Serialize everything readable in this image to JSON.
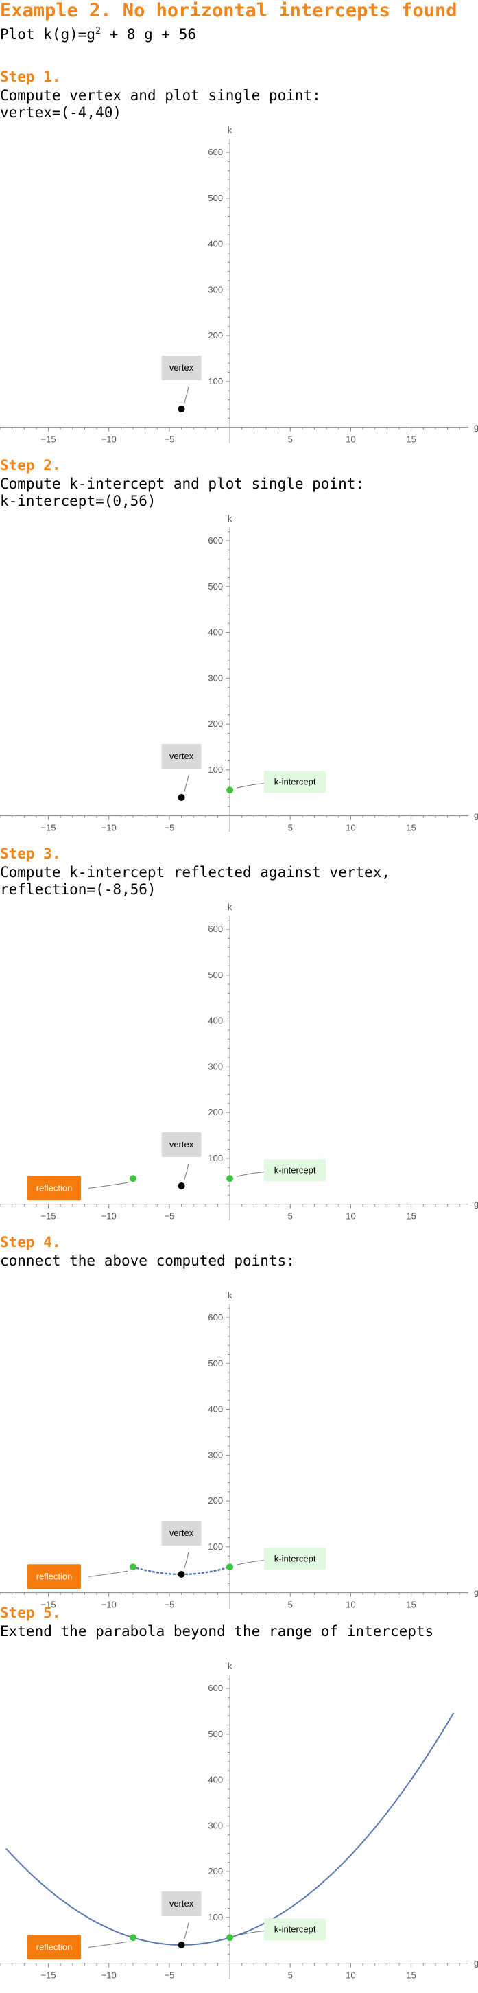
{
  "title": "Example 2. No horizontal intercepts found",
  "function_line": {
    "prefix": "Plot k(g)=g",
    "exp": "2",
    "suffix": " + 8 g + 56"
  },
  "colors": {
    "heading": "#f28418",
    "curve": "#5a79b4",
    "green_point": "#3ec43e",
    "vertex_point": "#000000",
    "vertex_label_bg": "#d9d9d9",
    "k_label_bg": "#e1f8e1",
    "reflection_label_bg": "#f57c0c"
  },
  "steps": [
    {
      "heading": "Step 1.",
      "text": [
        "Compute vertex and plot single point:",
        "vertex=(-4,40)"
      ]
    },
    {
      "heading": "Step 2.",
      "text": [
        "Compute k-intercept and plot single point:",
        "k-intercept=(0,56)"
      ]
    },
    {
      "heading": "Step 3.",
      "text": [
        "Compute k-intercept reflected against vertex,",
        "reflection=(-8,56)"
      ]
    },
    {
      "heading": "Step 4.",
      "text": [
        "connect the above computed points:"
      ]
    },
    {
      "heading": "Step 5.",
      "text": [
        "Extend the parabola beyond the range of intercepts"
      ]
    }
  ],
  "chart_data": [
    {
      "type": "scatter",
      "xlabel": "g",
      "ylabel": "k",
      "xlim": [
        -19,
        19.5
      ],
      "ylim": [
        -20,
        630
      ],
      "x_ticks": [
        -15,
        -10,
        -5,
        5,
        10,
        15
      ],
      "y_ticks": [
        100,
        200,
        300,
        400,
        500,
        600
      ],
      "points": [
        {
          "name": "vertex",
          "x": -4,
          "y": 40,
          "label": "vertex"
        }
      ],
      "connector": null,
      "curve": null
    },
    {
      "type": "scatter",
      "xlabel": "g",
      "ylabel": "k",
      "xlim": [
        -19,
        19.5
      ],
      "ylim": [
        -20,
        630
      ],
      "x_ticks": [
        -15,
        -10,
        -5,
        5,
        10,
        15
      ],
      "y_ticks": [
        100,
        200,
        300,
        400,
        500,
        600
      ],
      "points": [
        {
          "name": "vertex",
          "x": -4,
          "y": 40,
          "label": "vertex"
        },
        {
          "name": "k-intercept",
          "x": 0,
          "y": 56,
          "label": "k-intercept"
        }
      ],
      "connector": null,
      "curve": null
    },
    {
      "type": "scatter",
      "xlabel": "g",
      "ylabel": "k",
      "xlim": [
        -19,
        19.5
      ],
      "ylim": [
        -20,
        630
      ],
      "x_ticks": [
        -15,
        -10,
        -5,
        5,
        10,
        15
      ],
      "y_ticks": [
        100,
        200,
        300,
        400,
        500,
        600
      ],
      "points": [
        {
          "name": "vertex",
          "x": -4,
          "y": 40,
          "label": "vertex"
        },
        {
          "name": "k-intercept",
          "x": 0,
          "y": 56,
          "label": "k-intercept"
        },
        {
          "name": "reflection",
          "x": -8,
          "y": 56,
          "label": "reflection"
        }
      ],
      "connector": null,
      "curve": null
    },
    {
      "type": "line",
      "xlabel": "g",
      "ylabel": "k",
      "xlim": [
        -19,
        19.5
      ],
      "ylim": [
        -20,
        630
      ],
      "x_ticks": [
        -15,
        -10,
        -5,
        5,
        10,
        15
      ],
      "y_ticks": [
        100,
        200,
        300,
        400,
        500,
        600
      ],
      "points": [
        {
          "name": "vertex",
          "x": -4,
          "y": 40,
          "label": "vertex"
        },
        {
          "name": "k-intercept",
          "x": 0,
          "y": 56,
          "label": "k-intercept"
        },
        {
          "name": "reflection",
          "x": -8,
          "y": 56,
          "label": "reflection"
        }
      ],
      "connector": {
        "style": "dotted",
        "from": -8,
        "to": 0
      },
      "curve": null
    },
    {
      "type": "line",
      "xlabel": "g",
      "ylabel": "k",
      "xlim": [
        -19,
        19.5
      ],
      "ylim": [
        -20,
        630
      ],
      "x_ticks": [
        -15,
        -10,
        -5,
        5,
        10,
        15
      ],
      "y_ticks": [
        100,
        200,
        300,
        400,
        500,
        600
      ],
      "points": [
        {
          "name": "vertex",
          "x": -4,
          "y": 40,
          "label": "vertex"
        },
        {
          "name": "k-intercept",
          "x": 0,
          "y": 56,
          "label": "k-intercept"
        },
        {
          "name": "reflection",
          "x": -8,
          "y": 56,
          "label": "reflection"
        }
      ],
      "connector": null,
      "curve": {
        "coefficients": [
          1,
          8,
          56
        ],
        "from": -18.5,
        "to": 18.5
      }
    }
  ]
}
